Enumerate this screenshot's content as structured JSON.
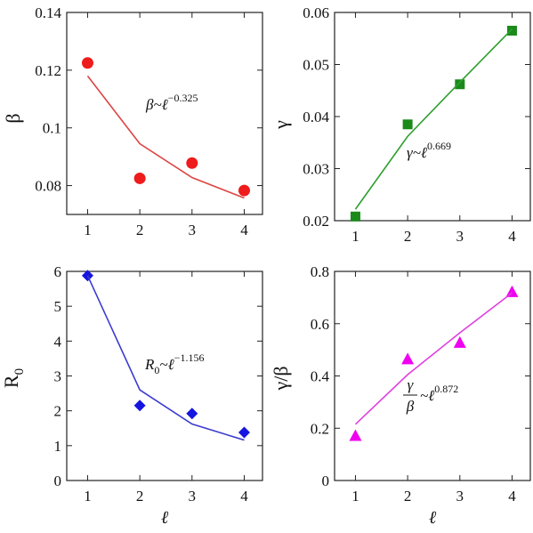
{
  "chart_data": [
    {
      "type": "scatter",
      "x": [
        1,
        2,
        3,
        4
      ],
      "xticks": [
        "1",
        "2",
        "3",
        "4"
      ],
      "xlim": [
        0.6,
        4.35
      ],
      "ylim": [
        0.07,
        0.14
      ],
      "yticks": [
        "0.08",
        "0.1",
        "0.12",
        "0.14"
      ],
      "ylabel": "β",
      "xlabel": "",
      "series": [
        {
          "marker": "circle",
          "color": "#ee1c1c",
          "values": [
            0.1225,
            0.0825,
            0.0878,
            0.0783
          ]
        },
        {
          "marker": "line",
          "color": "#dd4444",
          "values": [
            0.118,
            0.0945,
            0.0828,
            0.0757
          ]
        }
      ],
      "annotation": {
        "prefix": "β~ℓ",
        "exponent": "−0.325"
      }
    },
    {
      "type": "scatter",
      "x": [
        1,
        2,
        3,
        4
      ],
      "xticks": [
        "1",
        "2",
        "3",
        "4"
      ],
      "xlim": [
        0.6,
        4.35
      ],
      "ylim": [
        0.02,
        0.06
      ],
      "yticks": [
        "0.02",
        "0.03",
        "0.04",
        "0.05",
        "0.06"
      ],
      "ylabel": "γ",
      "xlabel": "",
      "series": [
        {
          "marker": "square",
          "color": "#1a8a1a",
          "values": [
            0.0208,
            0.0385,
            0.0462,
            0.0565
          ]
        },
        {
          "marker": "line",
          "color": "#2e9e2e",
          "values": [
            0.0222,
            0.0362,
            0.0466,
            0.0568
          ]
        }
      ],
      "annotation": {
        "prefix": "γ~ℓ",
        "exponent": "0.669"
      }
    },
    {
      "type": "scatter",
      "x": [
        1,
        2,
        3,
        4
      ],
      "xticks": [
        "1",
        "2",
        "3",
        "4"
      ],
      "xlim": [
        0.6,
        4.35
      ],
      "ylim": [
        0,
        6
      ],
      "yticks": [
        "0",
        "1",
        "2",
        "3",
        "4",
        "5",
        "6"
      ],
      "ylabel": "R",
      "ylabel_sub": "0",
      "xlabel": "ℓ",
      "series": [
        {
          "marker": "diamond",
          "color": "#1515e0",
          "values": [
            5.88,
            2.15,
            1.92,
            1.38
          ]
        },
        {
          "marker": "line",
          "color": "#3b3bd0",
          "values": [
            5.88,
            2.6,
            1.62,
            1.16
          ]
        }
      ],
      "annotation": {
        "prefix": "R",
        "prefix_sub": "0",
        "prefix_rest": "~ℓ",
        "exponent": "−1.156"
      }
    },
    {
      "type": "scatter",
      "x": [
        1,
        2,
        3,
        4
      ],
      "xticks": [
        "1",
        "2",
        "3",
        "4"
      ],
      "xlim": [
        0.6,
        4.35
      ],
      "ylim": [
        0,
        0.8
      ],
      "yticks": [
        "0",
        "0.2",
        "0.4",
        "0.6",
        "0.8"
      ],
      "ylabel": "γ/β",
      "xlabel": "ℓ",
      "series": [
        {
          "marker": "triangle",
          "color": "#f000f0",
          "values": [
            0.172,
            0.465,
            0.528,
            0.722
          ]
        },
        {
          "marker": "line",
          "color": "#e040e0",
          "values": [
            0.215,
            0.405,
            0.565,
            0.718
          ]
        }
      ],
      "annotation": {
        "num": "γ",
        "den": "β",
        "prefix_rest": "~ℓ",
        "exponent": "0.872"
      }
    }
  ]
}
